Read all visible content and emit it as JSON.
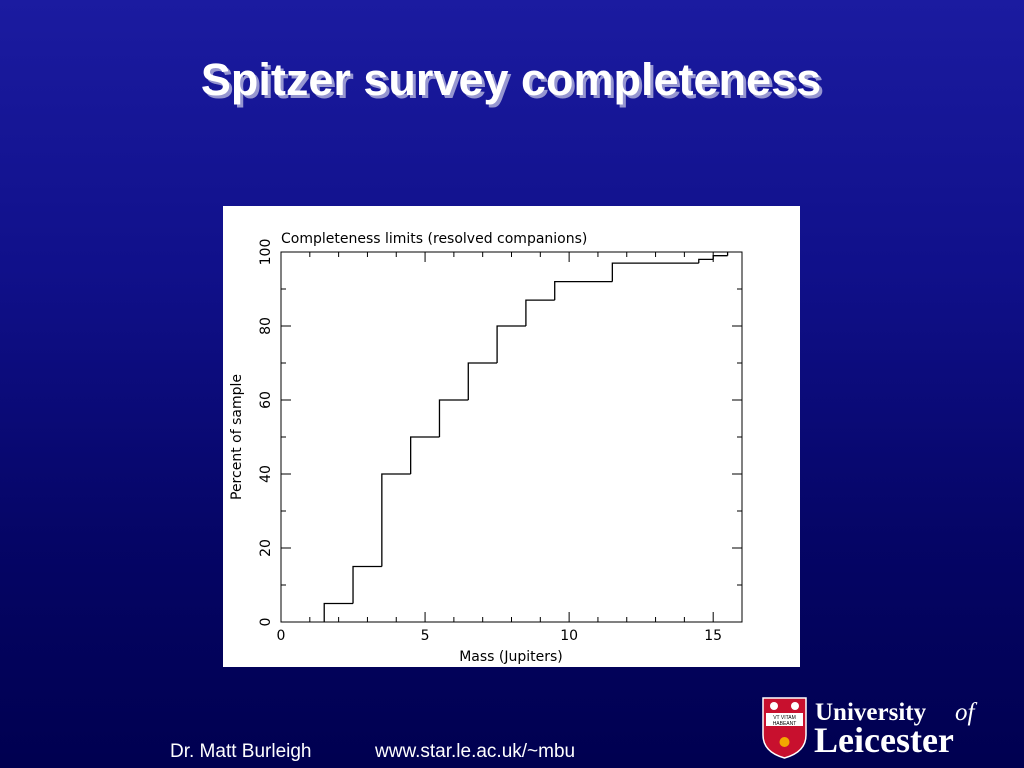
{
  "slide": {
    "title": "Spitzer survey completeness",
    "footer": [
      "Dr. Matt Burleigh",
      "www.star.le.ac.uk/~mbu"
    ],
    "logo": {
      "line1": "University",
      "line1_italic": "of",
      "line2": "Leicester",
      "motto": [
        "VT VITAM",
        "HABEANT"
      ]
    }
  },
  "chart_data": {
    "type": "step",
    "title": "Completeness limits (resolved companions)",
    "xlabel": "Mass (Jupiters)",
    "ylabel": "Percent of sample",
    "x": [
      1.5,
      2.5,
      3.5,
      4.5,
      5.5,
      6.5,
      7.5,
      8.5,
      9.5,
      11.5,
      14.5,
      15,
      15.5
    ],
    "values": [
      5,
      15,
      40,
      50,
      60,
      70,
      80,
      87,
      92,
      97,
      98,
      99,
      100
    ],
    "color": "#000000",
    "xlim": [
      0,
      16
    ],
    "ylim": [
      0,
      100
    ],
    "xticks": [
      0,
      5,
      10,
      15
    ],
    "yticks": [
      0,
      20,
      40,
      60,
      80,
      100
    ],
    "xminorticks": [
      1,
      2,
      3,
      4,
      6,
      7,
      8,
      9,
      11,
      12,
      13,
      14,
      16
    ],
    "yminorticks": [
      10,
      30,
      50,
      70,
      90
    ]
  }
}
